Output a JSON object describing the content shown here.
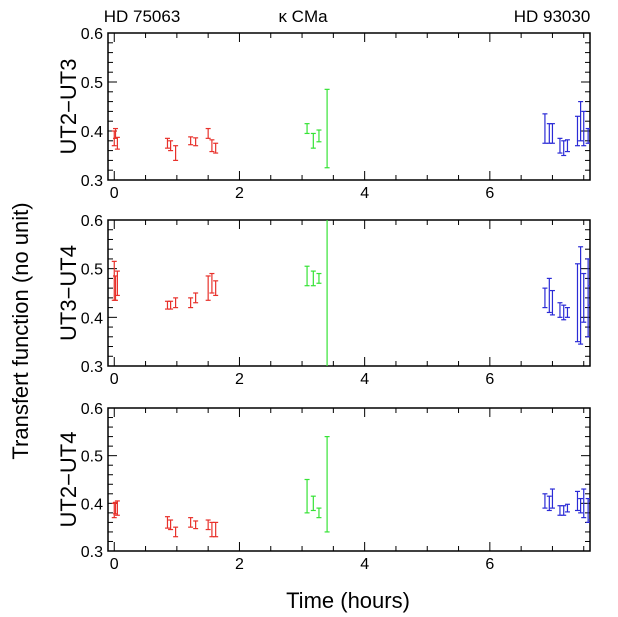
{
  "figure": {
    "top_labels": [
      "HD 75063",
      "κ CMa",
      "HD 93030"
    ],
    "ylabel": "Transfert function (no unit)",
    "xlabel": "Time (hours)"
  },
  "colors": {
    "HD 75063": "#e8312b",
    "κ CMa": "#36e336",
    "HD 93030": "#2b2bd6"
  },
  "chart_data": [
    {
      "type": "scatter",
      "title": "",
      "ylabel": "UT2−UT3",
      "xlabel": "",
      "xlim": [
        -0.1,
        7.6
      ],
      "ylim": [
        0.3,
        0.6
      ],
      "xticks": [
        "0",
        "2",
        "4",
        "6"
      ],
      "yticks": [
        "0.3",
        "0.4",
        "0.5",
        "0.6"
      ],
      "series": [
        {
          "name": "HD 75063",
          "color": "#e8312b",
          "points": [
            {
              "x": 0.0,
              "y": 0.385,
              "err": 0.015
            },
            {
              "x": 0.02,
              "y": 0.395,
              "err": 0.01
            },
            {
              "x": 0.05,
              "y": 0.375,
              "err": 0.012
            },
            {
              "x": 0.85,
              "y": 0.375,
              "err": 0.01
            },
            {
              "x": 0.9,
              "y": 0.37,
              "err": 0.01
            },
            {
              "x": 0.98,
              "y": 0.355,
              "err": 0.015
            },
            {
              "x": 1.22,
              "y": 0.38,
              "err": 0.008
            },
            {
              "x": 1.3,
              "y": 0.378,
              "err": 0.008
            },
            {
              "x": 1.5,
              "y": 0.395,
              "err": 0.01
            },
            {
              "x": 1.56,
              "y": 0.37,
              "err": 0.012
            },
            {
              "x": 1.62,
              "y": 0.365,
              "err": 0.01
            }
          ]
        },
        {
          "name": "κ CMa",
          "color": "#36e336",
          "points": [
            {
              "x": 3.08,
              "y": 0.405,
              "err": 0.01
            },
            {
              "x": 3.18,
              "y": 0.38,
              "err": 0.015
            },
            {
              "x": 3.27,
              "y": 0.39,
              "err": 0.012
            },
            {
              "x": 3.4,
              "y": 0.405,
              "err": 0.08
            }
          ]
        },
        {
          "name": "HD 93030",
          "color": "#2b2bd6",
          "points": [
            {
              "x": 6.88,
              "y": 0.405,
              "err": 0.03
            },
            {
              "x": 6.95,
              "y": 0.395,
              "err": 0.02
            },
            {
              "x": 7.0,
              "y": 0.395,
              "err": 0.02
            },
            {
              "x": 7.12,
              "y": 0.37,
              "err": 0.015
            },
            {
              "x": 7.18,
              "y": 0.365,
              "err": 0.015
            },
            {
              "x": 7.24,
              "y": 0.37,
              "err": 0.012
            },
            {
              "x": 7.4,
              "y": 0.4,
              "err": 0.03
            },
            {
              "x": 7.45,
              "y": 0.42,
              "err": 0.04
            },
            {
              "x": 7.5,
              "y": 0.405,
              "err": 0.035
            },
            {
              "x": 7.57,
              "y": 0.39,
              "err": 0.015
            },
            {
              "x": 7.62,
              "y": 0.39,
              "err": 0.015
            }
          ]
        }
      ]
    },
    {
      "type": "scatter",
      "title": "",
      "ylabel": "UT3−UT4",
      "xlabel": "",
      "xlim": [
        -0.1,
        7.6
      ],
      "ylim": [
        0.3,
        0.6
      ],
      "xticks": [
        "0",
        "2",
        "4",
        "6"
      ],
      "yticks": [
        "0.3",
        "0.4",
        "0.5",
        "0.6"
      ],
      "series": [
        {
          "name": "HD 75063",
          "color": "#e8312b",
          "points": [
            {
              "x": 0.0,
              "y": 0.475,
              "err": 0.04
            },
            {
              "x": 0.02,
              "y": 0.46,
              "err": 0.025
            },
            {
              "x": 0.05,
              "y": 0.47,
              "err": 0.025
            },
            {
              "x": 0.85,
              "y": 0.425,
              "err": 0.008
            },
            {
              "x": 0.9,
              "y": 0.425,
              "err": 0.008
            },
            {
              "x": 0.98,
              "y": 0.43,
              "err": 0.01
            },
            {
              "x": 1.22,
              "y": 0.43,
              "err": 0.01
            },
            {
              "x": 1.3,
              "y": 0.44,
              "err": 0.01
            },
            {
              "x": 1.5,
              "y": 0.46,
              "err": 0.025
            },
            {
              "x": 1.56,
              "y": 0.47,
              "err": 0.02
            },
            {
              "x": 1.62,
              "y": 0.46,
              "err": 0.015
            }
          ]
        },
        {
          "name": "κ CMa",
          "color": "#36e336",
          "points": [
            {
              "x": 3.08,
              "y": 0.485,
              "err": 0.02
            },
            {
              "x": 3.18,
              "y": 0.48,
              "err": 0.015
            },
            {
              "x": 3.27,
              "y": 0.48,
              "err": 0.01
            },
            {
              "x": 3.4,
              "y": 0.45,
              "err": 0.16
            }
          ]
        },
        {
          "name": "HD 93030",
          "color": "#2b2bd6",
          "points": [
            {
              "x": 6.88,
              "y": 0.44,
              "err": 0.02
            },
            {
              "x": 6.95,
              "y": 0.445,
              "err": 0.035
            },
            {
              "x": 7.0,
              "y": 0.43,
              "err": 0.025
            },
            {
              "x": 7.12,
              "y": 0.415,
              "err": 0.015
            },
            {
              "x": 7.18,
              "y": 0.41,
              "err": 0.015
            },
            {
              "x": 7.24,
              "y": 0.41,
              "err": 0.01
            },
            {
              "x": 7.4,
              "y": 0.43,
              "err": 0.08
            },
            {
              "x": 7.45,
              "y": 0.445,
              "err": 0.1
            },
            {
              "x": 7.5,
              "y": 0.44,
              "err": 0.05
            },
            {
              "x": 7.57,
              "y": 0.44,
              "err": 0.08
            },
            {
              "x": 7.62,
              "y": 0.445,
              "err": 0.02
            }
          ]
        }
      ]
    },
    {
      "type": "scatter",
      "title": "",
      "ylabel": "UT2−UT4",
      "xlabel": "Time (hours)",
      "xlim": [
        -0.1,
        7.6
      ],
      "ylim": [
        0.3,
        0.6
      ],
      "xticks": [
        "0",
        "2",
        "4",
        "6"
      ],
      "yticks": [
        "0.3",
        "0.4",
        "0.5",
        "0.6"
      ],
      "series": [
        {
          "name": "HD 75063",
          "color": "#e8312b",
          "points": [
            {
              "x": 0.0,
              "y": 0.385,
              "err": 0.015
            },
            {
              "x": 0.02,
              "y": 0.39,
              "err": 0.012
            },
            {
              "x": 0.05,
              "y": 0.39,
              "err": 0.015
            },
            {
              "x": 0.85,
              "y": 0.36,
              "err": 0.012
            },
            {
              "x": 0.9,
              "y": 0.355,
              "err": 0.01
            },
            {
              "x": 0.98,
              "y": 0.34,
              "err": 0.01
            },
            {
              "x": 1.22,
              "y": 0.36,
              "err": 0.01
            },
            {
              "x": 1.3,
              "y": 0.355,
              "err": 0.008
            },
            {
              "x": 1.5,
              "y": 0.355,
              "err": 0.01
            },
            {
              "x": 1.56,
              "y": 0.345,
              "err": 0.015
            },
            {
              "x": 1.62,
              "y": 0.345,
              "err": 0.015
            }
          ]
        },
        {
          "name": "κ CMa",
          "color": "#36e336",
          "points": [
            {
              "x": 3.08,
              "y": 0.415,
              "err": 0.035
            },
            {
              "x": 3.18,
              "y": 0.4,
              "err": 0.015
            },
            {
              "x": 3.27,
              "y": 0.38,
              "err": 0.01
            },
            {
              "x": 3.4,
              "y": 0.44,
              "err": 0.1
            }
          ]
        },
        {
          "name": "HD 93030",
          "color": "#2b2bd6",
          "points": [
            {
              "x": 6.88,
              "y": 0.405,
              "err": 0.015
            },
            {
              "x": 6.95,
              "y": 0.4,
              "err": 0.015
            },
            {
              "x": 7.0,
              "y": 0.41,
              "err": 0.02
            },
            {
              "x": 7.12,
              "y": 0.385,
              "err": 0.01
            },
            {
              "x": 7.18,
              "y": 0.385,
              "err": 0.01
            },
            {
              "x": 7.24,
              "y": 0.39,
              "err": 0.008
            },
            {
              "x": 7.4,
              "y": 0.405,
              "err": 0.02
            },
            {
              "x": 7.45,
              "y": 0.395,
              "err": 0.015
            },
            {
              "x": 7.5,
              "y": 0.4,
              "err": 0.03
            },
            {
              "x": 7.57,
              "y": 0.385,
              "err": 0.025
            },
            {
              "x": 7.62,
              "y": 0.385,
              "err": 0.02
            }
          ]
        }
      ]
    }
  ]
}
